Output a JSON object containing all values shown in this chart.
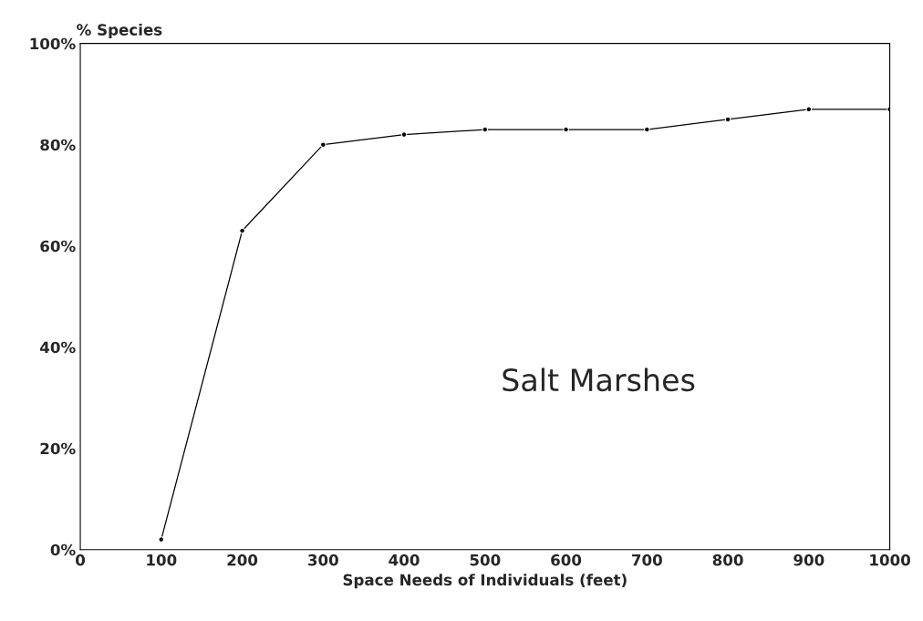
{
  "chart_data": {
    "type": "line",
    "ylabel": "% Species",
    "xlabel": "Space Needs of Individuals (feet)",
    "annotations": [
      "Salt Marshes"
    ],
    "x": [
      100,
      200,
      300,
      400,
      500,
      600,
      700,
      800,
      900,
      1000
    ],
    "series": [
      {
        "color": "#000000",
        "values": [
          2,
          63,
          80,
          82,
          83,
          83,
          83,
          85,
          87,
          87
        ]
      }
    ],
    "xlim": [
      0,
      1000
    ],
    "xticks": [
      0,
      100,
      200,
      300,
      400,
      500,
      600,
      700,
      800,
      900,
      1000
    ],
    "ylim": [
      0,
      100
    ],
    "yticks": [
      {
        "value": 0,
        "label": "0%"
      },
      {
        "value": 20,
        "label": "20%"
      },
      {
        "value": 40,
        "label": "40%"
      },
      {
        "value": 60,
        "label": "60%"
      },
      {
        "value": 80,
        "label": "80%"
      },
      {
        "value": 100,
        "label": "100%"
      }
    ],
    "grid": false,
    "legend": false,
    "marker": "circle",
    "line_style": "solid"
  }
}
